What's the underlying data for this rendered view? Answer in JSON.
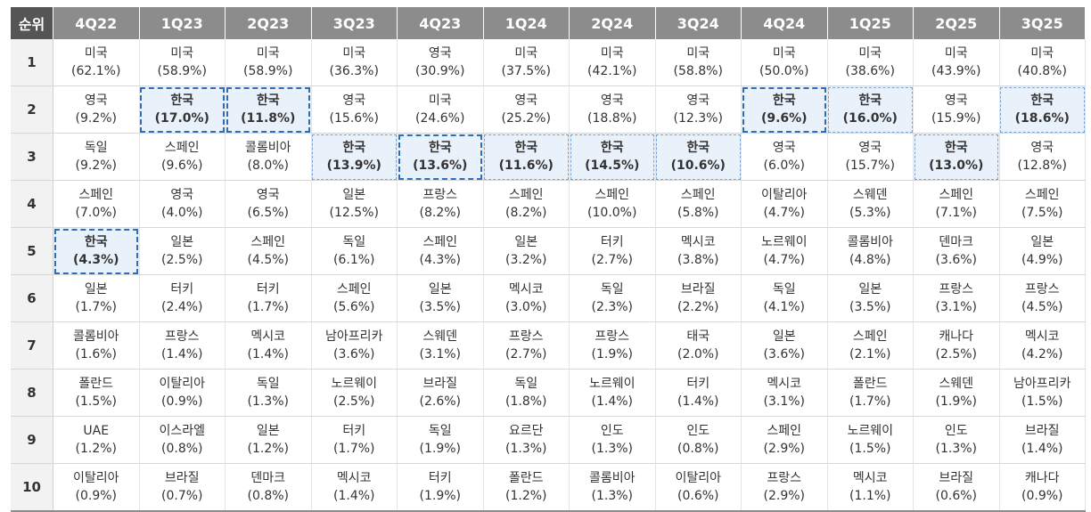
{
  "header": {
    "rank_label": "순위",
    "quarters": [
      "4Q22",
      "1Q23",
      "2Q23",
      "3Q23",
      "4Q23",
      "1Q24",
      "2Q24",
      "3Q24",
      "4Q24",
      "1Q25",
      "2Q25",
      "3Q25"
    ]
  },
  "rows": [
    {
      "rank": "1",
      "cells": [
        {
          "country": "미국",
          "pct": "(62.1%)"
        },
        {
          "country": "미국",
          "pct": "(58.9%)"
        },
        {
          "country": "미국",
          "pct": "(58.9%)"
        },
        {
          "country": "미국",
          "pct": "(36.3%)"
        },
        {
          "country": "영국",
          "pct": "(30.9%)"
        },
        {
          "country": "미국",
          "pct": "(37.5%)"
        },
        {
          "country": "미국",
          "pct": "(42.1%)"
        },
        {
          "country": "미국",
          "pct": "(58.8%)"
        },
        {
          "country": "미국",
          "pct": "(50.0%)"
        },
        {
          "country": "미국",
          "pct": "(38.6%)"
        },
        {
          "country": "미국",
          "pct": "(43.9%)"
        },
        {
          "country": "미국",
          "pct": "(40.8%)"
        }
      ]
    },
    {
      "rank": "2",
      "cells": [
        {
          "country": "영국",
          "pct": "(9.2%)"
        },
        {
          "country": "한국",
          "pct": "(17.0%)",
          "hl": "strong"
        },
        {
          "country": "한국",
          "pct": "(11.8%)",
          "hl": "strong"
        },
        {
          "country": "영국",
          "pct": "(15.6%)"
        },
        {
          "country": "미국",
          "pct": "(24.6%)"
        },
        {
          "country": "영국",
          "pct": "(25.2%)"
        },
        {
          "country": "영국",
          "pct": "(18.8%)"
        },
        {
          "country": "영국",
          "pct": "(12.3%)"
        },
        {
          "country": "한국",
          "pct": "(9.6%)",
          "hl": "strong"
        },
        {
          "country": "한국",
          "pct": "(16.0%)",
          "hl": "light"
        },
        {
          "country": "영국",
          "pct": "(15.9%)"
        },
        {
          "country": "한국",
          "pct": "(18.6%)",
          "hl": "light"
        }
      ]
    },
    {
      "rank": "3",
      "cells": [
        {
          "country": "독일",
          "pct": "(9.2%)"
        },
        {
          "country": "스페인",
          "pct": "(9.6%)"
        },
        {
          "country": "콜롬비아",
          "pct": "(8.0%)"
        },
        {
          "country": "한국",
          "pct": "(13.9%)",
          "hl": "light"
        },
        {
          "country": "한국",
          "pct": "(13.6%)",
          "hl": "strong"
        },
        {
          "country": "한국",
          "pct": "(11.6%)",
          "hl": "light"
        },
        {
          "country": "한국",
          "pct": "(14.5%)",
          "hl": "light"
        },
        {
          "country": "한국",
          "pct": "(10.6%)",
          "hl": "light"
        },
        {
          "country": "영국",
          "pct": "(6.0%)"
        },
        {
          "country": "영국",
          "pct": "(15.7%)"
        },
        {
          "country": "한국",
          "pct": "(13.0%)",
          "hl": "light"
        },
        {
          "country": "영국",
          "pct": "(12.8%)"
        }
      ]
    },
    {
      "rank": "4",
      "cells": [
        {
          "country": "스페인",
          "pct": "(7.0%)"
        },
        {
          "country": "영국",
          "pct": "(4.0%)"
        },
        {
          "country": "영국",
          "pct": "(6.5%)"
        },
        {
          "country": "일본",
          "pct": "(12.5%)"
        },
        {
          "country": "프랑스",
          "pct": "(8.2%)"
        },
        {
          "country": "스페인",
          "pct": "(8.2%)"
        },
        {
          "country": "스페인",
          "pct": "(10.0%)"
        },
        {
          "country": "스페인",
          "pct": "(5.8%)"
        },
        {
          "country": "이탈리아",
          "pct": "(4.7%)"
        },
        {
          "country": "스웨덴",
          "pct": "(5.3%)"
        },
        {
          "country": "스페인",
          "pct": "(7.1%)"
        },
        {
          "country": "스페인",
          "pct": "(7.5%)"
        }
      ]
    },
    {
      "rank": "5",
      "cells": [
        {
          "country": "한국",
          "pct": "(4.3%)",
          "hl": "strong"
        },
        {
          "country": "일본",
          "pct": "(2.5%)"
        },
        {
          "country": "스페인",
          "pct": "(4.5%)"
        },
        {
          "country": "독일",
          "pct": "(6.1%)"
        },
        {
          "country": "스페인",
          "pct": "(4.3%)"
        },
        {
          "country": "일본",
          "pct": "(3.2%)"
        },
        {
          "country": "터키",
          "pct": "(2.7%)"
        },
        {
          "country": "멕시코",
          "pct": "(3.8%)"
        },
        {
          "country": "노르웨이",
          "pct": "(4.7%)"
        },
        {
          "country": "콜롬비아",
          "pct": "(4.8%)"
        },
        {
          "country": "덴마크",
          "pct": "(3.6%)"
        },
        {
          "country": "일본",
          "pct": "(4.9%)"
        }
      ]
    },
    {
      "rank": "6",
      "cells": [
        {
          "country": "일본",
          "pct": "(1.7%)"
        },
        {
          "country": "터키",
          "pct": "(2.4%)"
        },
        {
          "country": "터키",
          "pct": "(1.7%)"
        },
        {
          "country": "스페인",
          "pct": "(5.6%)"
        },
        {
          "country": "일본",
          "pct": "(3.5%)"
        },
        {
          "country": "멕시코",
          "pct": "(3.0%)"
        },
        {
          "country": "독일",
          "pct": "(2.3%)"
        },
        {
          "country": "브라질",
          "pct": "(2.2%)"
        },
        {
          "country": "독일",
          "pct": "(4.1%)"
        },
        {
          "country": "일본",
          "pct": "(3.5%)"
        },
        {
          "country": "프랑스",
          "pct": "(3.1%)"
        },
        {
          "country": "프랑스",
          "pct": "(4.5%)"
        }
      ]
    },
    {
      "rank": "7",
      "cells": [
        {
          "country": "콜롬비아",
          "pct": "(1.6%)"
        },
        {
          "country": "프랑스",
          "pct": "(1.4%)"
        },
        {
          "country": "멕시코",
          "pct": "(1.4%)"
        },
        {
          "country": "남아프리카",
          "pct": "(3.6%)"
        },
        {
          "country": "스웨덴",
          "pct": "(3.1%)"
        },
        {
          "country": "프랑스",
          "pct": "(2.7%)"
        },
        {
          "country": "프랑스",
          "pct": "(1.9%)"
        },
        {
          "country": "태국",
          "pct": "(2.0%)"
        },
        {
          "country": "일본",
          "pct": "(3.6%)"
        },
        {
          "country": "스페인",
          "pct": "(2.1%)"
        },
        {
          "country": "캐나다",
          "pct": "(2.5%)"
        },
        {
          "country": "멕시코",
          "pct": "(4.2%)"
        }
      ]
    },
    {
      "rank": "8",
      "cells": [
        {
          "country": "폴란드",
          "pct": "(1.5%)"
        },
        {
          "country": "이탈리아",
          "pct": "(0.9%)"
        },
        {
          "country": "독일",
          "pct": "(1.3%)"
        },
        {
          "country": "노르웨이",
          "pct": "(2.5%)"
        },
        {
          "country": "브라질",
          "pct": "(2.6%)"
        },
        {
          "country": "독일",
          "pct": "(1.8%)"
        },
        {
          "country": "노르웨이",
          "pct": "(1.4%)"
        },
        {
          "country": "터키",
          "pct": "(1.4%)"
        },
        {
          "country": "멕시코",
          "pct": "(3.1%)"
        },
        {
          "country": "폴란드",
          "pct": "(1.7%)"
        },
        {
          "country": "스웨덴",
          "pct": "(1.9%)"
        },
        {
          "country": "남아프리카",
          "pct": "(1.5%)"
        }
      ]
    },
    {
      "rank": "9",
      "cells": [
        {
          "country": "UAE",
          "pct": "(1.2%)"
        },
        {
          "country": "이스라엘",
          "pct": "(0.8%)"
        },
        {
          "country": "일본",
          "pct": "(1.2%)"
        },
        {
          "country": "터키",
          "pct": "(1.7%)"
        },
        {
          "country": "독일",
          "pct": "(1.9%)"
        },
        {
          "country": "요르단",
          "pct": "(1.3%)"
        },
        {
          "country": "인도",
          "pct": "(1.3%)"
        },
        {
          "country": "인도",
          "pct": "(0.8%)"
        },
        {
          "country": "스페인",
          "pct": "(2.9%)"
        },
        {
          "country": "노르웨이",
          "pct": "(1.5%)"
        },
        {
          "country": "인도",
          "pct": "(1.3%)"
        },
        {
          "country": "브라질",
          "pct": "(1.4%)"
        }
      ]
    },
    {
      "rank": "10",
      "cells": [
        {
          "country": "이탈리아",
          "pct": "(0.9%)"
        },
        {
          "country": "브라질",
          "pct": "(0.7%)"
        },
        {
          "country": "덴마크",
          "pct": "(0.8%)"
        },
        {
          "country": "멕시코",
          "pct": "(1.4%)"
        },
        {
          "country": "터키",
          "pct": "(1.9%)"
        },
        {
          "country": "폴란드",
          "pct": "(1.2%)"
        },
        {
          "country": "콜롬비아",
          "pct": "(1.3%)"
        },
        {
          "country": "이탈리아",
          "pct": "(0.6%)"
        },
        {
          "country": "프랑스",
          "pct": "(2.9%)"
        },
        {
          "country": "멕시코",
          "pct": "(1.1%)"
        },
        {
          "country": "브라질",
          "pct": "(0.6%)"
        },
        {
          "country": "캐나다",
          "pct": "(0.9%)"
        }
      ]
    }
  ],
  "colors": {
    "header_bg": "#8c8c8c",
    "rank_header_bg": "#555555",
    "highlight_bg": "#e9f1fb",
    "highlight_border": "#2f6db5"
  }
}
